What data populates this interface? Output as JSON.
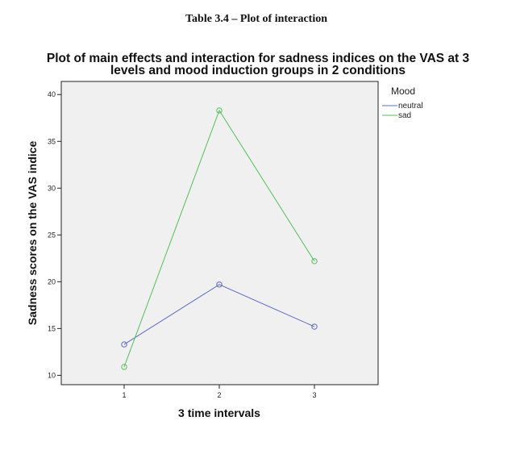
{
  "caption": "Table 3.4 – Plot of interaction",
  "chart_data": {
    "type": "line",
    "title": "Plot of main effects and interaction for sadness indices on the VAS at 3",
    "title_line2": "levels and mood induction groups in 2 conditions",
    "xlabel": "3 time intervals",
    "ylabel": "Sadness scores on the VAS indice",
    "categories": [
      "1",
      "2",
      "3"
    ],
    "yticks": [
      "10",
      "15",
      "20",
      "25",
      "30",
      "35",
      "40"
    ],
    "ylim": [
      9,
      41.4
    ],
    "legend": {
      "title": "Mood",
      "position": "top-right"
    },
    "series": [
      {
        "name": "neutral",
        "values": [
          13.3,
          19.7,
          15.2
        ],
        "color": "#5a6cc2"
      },
      {
        "name": "sad",
        "values": [
          10.9,
          38.3,
          22.2
        ],
        "color": "#52c05a"
      }
    ]
  }
}
